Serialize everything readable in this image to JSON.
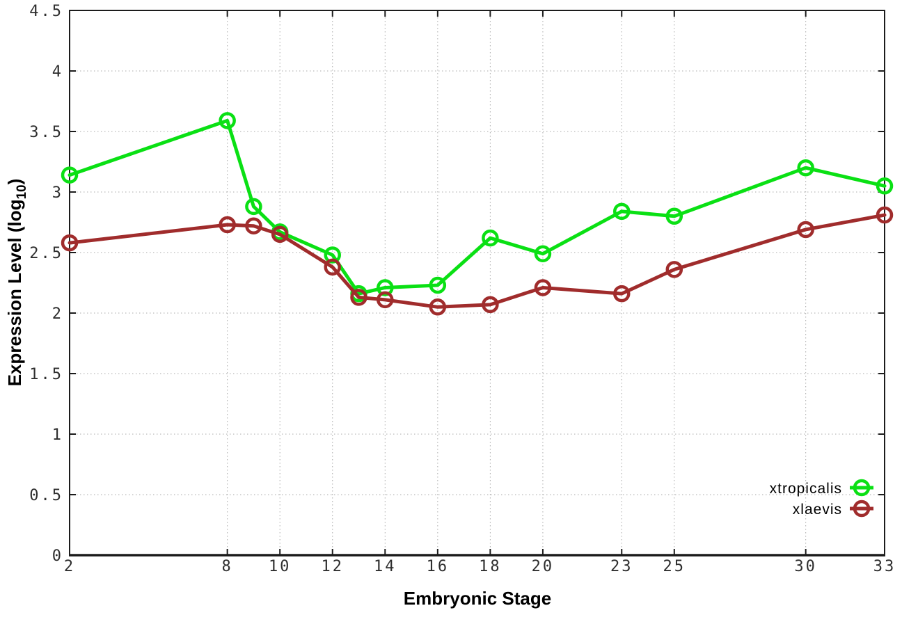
{
  "figure": {
    "xlabel": "Embryonic Stage",
    "ylabel_prefix": "Expression Level (log",
    "ylabel_sub": "10",
    "ylabel_suffix": ")"
  },
  "chart_data": {
    "type": "line",
    "title": "",
    "xlabel": "Embryonic Stage",
    "ylabel": "Expression Level (log10)",
    "xlim": [
      2,
      33
    ],
    "ylim": [
      0,
      4.5
    ],
    "x_ticks": [
      2,
      8,
      10,
      12,
      14,
      16,
      18,
      20,
      23,
      25,
      30,
      33
    ],
    "y_ticks": [
      0,
      0.5,
      1,
      1.5,
      2,
      2.5,
      3,
      3.5,
      4,
      4.5
    ],
    "grid": true,
    "legend_position": "inside-right-bottom",
    "marker": "open-circle",
    "x": [
      2,
      8,
      9,
      10,
      12,
      13,
      14,
      16,
      18,
      20,
      23,
      25,
      30,
      33
    ],
    "series": [
      {
        "name": "xtropicalis",
        "color": "#0ae014",
        "values": [
          3.14,
          3.59,
          2.88,
          2.67,
          2.48,
          2.16,
          2.21,
          2.23,
          2.62,
          2.49,
          2.84,
          2.8,
          3.2,
          3.05
        ]
      },
      {
        "name": "xlaevis",
        "color": "#a02c2c",
        "values": [
          2.58,
          2.73,
          2.72,
          2.65,
          2.38,
          2.13,
          2.11,
          2.05,
          2.07,
          2.21,
          2.16,
          2.36,
          2.69,
          2.81
        ]
      }
    ],
    "axis_color": "#1c1c1c",
    "grid_color": "#aaaaaa"
  }
}
